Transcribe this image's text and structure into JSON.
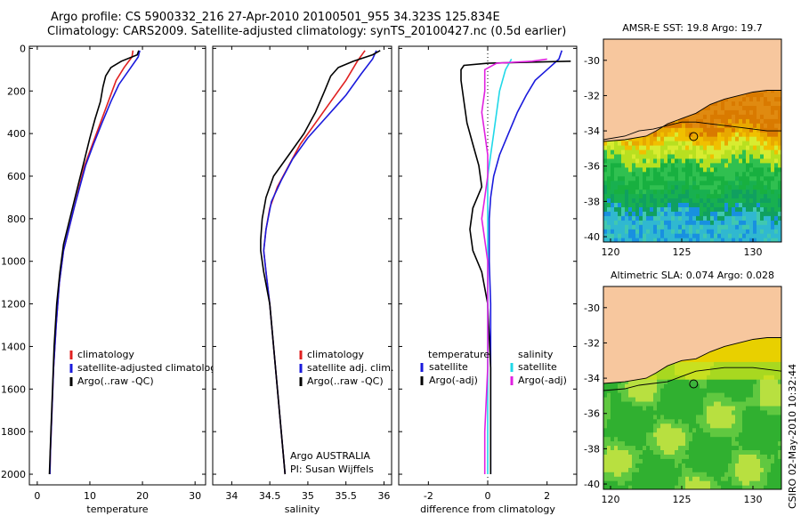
{
  "header": {
    "line1": "Argo profile: CS 5900332_216 27-Apr-2010 20100501_955 34.323S 125.834E",
    "line2": "Climatology: CARS2009. Satellite-adjusted climatology: synTS_20100427.nc (0.5d earlier)"
  },
  "footer_stamp": "CSIRO 02-May-2010 10:32:44",
  "colors": {
    "climatology": "#e02020",
    "satellite": "#1a1adc",
    "argo": "#000000",
    "sal_satellite": "#20d8e8",
    "sal_argo": "#e020e0",
    "land": "#f7c79e"
  },
  "chart_data": [
    {
      "type": "line",
      "id": "temperature",
      "xlabel": "temperature",
      "ylabel": "",
      "xlim": [
        -1.5,
        32
      ],
      "ylim": [
        2050,
        -10
      ],
      "xticks": [
        0,
        10,
        20,
        30
      ],
      "yticks": [
        0,
        200,
        400,
        600,
        800,
        1000,
        1200,
        1400,
        1600,
        1800,
        2000
      ],
      "legend": [
        "climatology",
        "satellite-adjusted climatology",
        "Argo(..raw -QC)"
      ],
      "series": [
        {
          "name": "climatology",
          "color": "#e02020",
          "points": [
            [
              18.2,
              10
            ],
            [
              18.0,
              40
            ],
            [
              16.5,
              90
            ],
            [
              15.0,
              150
            ],
            [
              13.5,
              250
            ],
            [
              12.0,
              350
            ],
            [
              10.5,
              450
            ],
            [
              9.0,
              550
            ],
            [
              8.0,
              650
            ],
            [
              7.0,
              750
            ],
            [
              6.0,
              850
            ],
            [
              5.0,
              950
            ],
            [
              4.2,
              1100
            ],
            [
              3.6,
              1300
            ],
            [
              3.1,
              1500
            ],
            [
              2.8,
              1700
            ],
            [
              2.5,
              1900
            ],
            [
              2.4,
              2000
            ]
          ]
        },
        {
          "name": "satellite-adjusted climatology",
          "color": "#1a1adc",
          "points": [
            [
              19.5,
              10
            ],
            [
              19.2,
              40
            ],
            [
              17.5,
              100
            ],
            [
              15.5,
              170
            ],
            [
              14.0,
              250
            ],
            [
              12.3,
              350
            ],
            [
              10.7,
              450
            ],
            [
              9.2,
              550
            ],
            [
              8.1,
              650
            ],
            [
              7.0,
              750
            ],
            [
              6.0,
              850
            ],
            [
              5.0,
              950
            ],
            [
              4.2,
              1100
            ],
            [
              3.6,
              1300
            ],
            [
              3.1,
              1500
            ],
            [
              2.8,
              1700
            ],
            [
              2.5,
              1900
            ],
            [
              2.4,
              2000
            ]
          ]
        },
        {
          "name": "Argo(..raw -QC)",
          "color": "#000000",
          "points": [
            [
              19.3,
              10
            ],
            [
              19.0,
              30
            ],
            [
              16.0,
              60
            ],
            [
              14.0,
              90
            ],
            [
              13.0,
              130
            ],
            [
              12.5,
              180
            ],
            [
              12.0,
              250
            ],
            [
              11.0,
              330
            ],
            [
              10.0,
              420
            ],
            [
              9.0,
              520
            ],
            [
              8.0,
              620
            ],
            [
              7.0,
              720
            ],
            [
              6.0,
              820
            ],
            [
              5.0,
              920
            ],
            [
              4.3,
              1050
            ],
            [
              3.7,
              1200
            ],
            [
              3.2,
              1400
            ],
            [
              2.9,
              1600
            ],
            [
              2.6,
              1800
            ],
            [
              2.3,
              2000
            ]
          ]
        }
      ]
    },
    {
      "type": "line",
      "id": "salinity",
      "xlabel": "salinity",
      "xlim": [
        33.75,
        36.1
      ],
      "ylim": [
        2050,
        -10
      ],
      "xticks": [
        34,
        34.5,
        35,
        35.5,
        36
      ],
      "legend": [
        "climatology",
        "satellite adj. clim.",
        "Argo(..raw -QC)"
      ],
      "annotation": [
        "Argo AUSTRALIA",
        "PI: Susan Wijffels"
      ],
      "series": [
        {
          "name": "climatology",
          "color": "#e02020",
          "points": [
            [
              35.75,
              10
            ],
            [
              35.65,
              60
            ],
            [
              35.5,
              150
            ],
            [
              35.3,
              250
            ],
            [
              35.1,
              350
            ],
            [
              34.9,
              450
            ],
            [
              34.75,
              550
            ],
            [
              34.6,
              650
            ],
            [
              34.5,
              750
            ],
            [
              34.45,
              850
            ],
            [
              34.42,
              950
            ],
            [
              34.45,
              1050
            ],
            [
              34.5,
              1200
            ],
            [
              34.55,
              1400
            ],
            [
              34.6,
              1600
            ],
            [
              34.65,
              1800
            ],
            [
              34.7,
              2000
            ]
          ]
        },
        {
          "name": "satellite adj. clim.",
          "color": "#1a1adc",
          "points": [
            [
              35.9,
              10
            ],
            [
              35.85,
              50
            ],
            [
              35.7,
              120
            ],
            [
              35.5,
              220
            ],
            [
              35.25,
              320
            ],
            [
              35.0,
              420
            ],
            [
              34.8,
              520
            ],
            [
              34.65,
              620
            ],
            [
              34.52,
              720
            ],
            [
              34.45,
              850
            ],
            [
              34.42,
              950
            ],
            [
              34.45,
              1050
            ],
            [
              34.5,
              1200
            ],
            [
              34.55,
              1400
            ],
            [
              34.6,
              1600
            ],
            [
              34.65,
              1800
            ],
            [
              34.7,
              2000
            ]
          ]
        },
        {
          "name": "Argo(..raw -QC)",
          "color": "#000000",
          "points": [
            [
              35.95,
              10
            ],
            [
              35.85,
              30
            ],
            [
              35.6,
              60
            ],
            [
              35.4,
              90
            ],
            [
              35.3,
              130
            ],
            [
              35.22,
              200
            ],
            [
              35.1,
              300
            ],
            [
              34.95,
              400
            ],
            [
              34.75,
              500
            ],
            [
              34.55,
              600
            ],
            [
              34.45,
              700
            ],
            [
              34.4,
              800
            ],
            [
              34.38,
              900
            ],
            [
              34.38,
              950
            ],
            [
              34.42,
              1050
            ],
            [
              34.5,
              1200
            ],
            [
              34.55,
              1400
            ],
            [
              34.6,
              1600
            ],
            [
              34.65,
              1800
            ],
            [
              34.7,
              2000
            ]
          ]
        }
      ]
    },
    {
      "type": "line",
      "id": "difference",
      "xlabel": "difference from climatology",
      "xlim": [
        -3.0,
        3.0
      ],
      "ylim": [
        2050,
        -10
      ],
      "xticks": [
        -2,
        0,
        2
      ],
      "legend_temperature": [
        "temperature",
        "satellite",
        "Argo(-adj)"
      ],
      "legend_salinity": [
        "salinity",
        "satellite",
        "Argo(-adj)"
      ],
      "series": [
        {
          "name": "temperature satellite",
          "color": "#1a1adc",
          "points": [
            [
              2.5,
              10
            ],
            [
              2.4,
              50
            ],
            [
              2.0,
              100
            ],
            [
              1.6,
              150
            ],
            [
              1.3,
              220
            ],
            [
              1.0,
              300
            ],
            [
              0.7,
              400
            ],
            [
              0.4,
              500
            ],
            [
              0.2,
              600
            ],
            [
              0.1,
              700
            ],
            [
              0.05,
              800
            ],
            [
              0.05,
              1000
            ],
            [
              0.1,
              1200
            ],
            [
              0.1,
              1500
            ],
            [
              0.1,
              1800
            ],
            [
              0.1,
              2000
            ]
          ]
        },
        {
          "name": "temperature Argo(-adj)",
          "color": "#000000",
          "points": [
            [
              2.8,
              60
            ],
            [
              0.0,
              70
            ],
            [
              -0.8,
              80
            ],
            [
              -0.9,
              100
            ],
            [
              -0.9,
              150
            ],
            [
              -0.8,
              250
            ],
            [
              -0.7,
              350
            ],
            [
              -0.5,
              450
            ],
            [
              -0.3,
              550
            ],
            [
              -0.2,
              650
            ],
            [
              -0.5,
              750
            ],
            [
              -0.6,
              850
            ],
            [
              -0.5,
              950
            ],
            [
              -0.2,
              1050
            ],
            [
              0.0,
              1200
            ],
            [
              0.1,
              1500
            ],
            [
              0.1,
              1800
            ],
            [
              0.1,
              2000
            ]
          ]
        },
        {
          "name": "salinity satellite",
          "color": "#20d8e8",
          "points": [
            [
              0.8,
              50
            ],
            [
              0.6,
              100
            ],
            [
              0.4,
              200
            ],
            [
              0.3,
              300
            ],
            [
              0.2,
              400
            ],
            [
              0.1,
              500
            ],
            [
              0.0,
              600
            ],
            [
              0.0,
              800
            ],
            [
              0.0,
              1000
            ],
            [
              0.0,
              1200
            ],
            [
              0.0,
              1500
            ],
            [
              0.0,
              1800
            ],
            [
              0.0,
              2000
            ]
          ]
        },
        {
          "name": "salinity Argo(-adj)",
          "color": "#e020e0",
          "points": [
            [
              2.0,
              50
            ],
            [
              1.5,
              60
            ],
            [
              0.3,
              70
            ],
            [
              -0.1,
              100
            ],
            [
              -0.1,
              200
            ],
            [
              -0.2,
              300
            ],
            [
              -0.1,
              400
            ],
            [
              0.0,
              500
            ],
            [
              0.0,
              600
            ],
            [
              -0.1,
              700
            ],
            [
              -0.2,
              800
            ],
            [
              -0.1,
              900
            ],
            [
              0.0,
              1000
            ],
            [
              0.0,
              1200
            ],
            [
              0.0,
              1500
            ],
            [
              -0.1,
              1800
            ],
            [
              -0.1,
              2000
            ]
          ]
        }
      ]
    },
    {
      "type": "heatmap",
      "id": "sst_map",
      "title": "AMSR-E SST: 19.8 Argo: 19.7",
      "xlim": [
        119.5,
        132
      ],
      "ylim": [
        -40.3,
        -28.8
      ],
      "xticks": [
        120,
        125,
        130
      ],
      "yticks": [
        -30,
        -32,
        -34,
        -36,
        -38,
        -40
      ],
      "marker": {
        "lon": 125.834,
        "lat": -34.323
      },
      "coast": [
        [
          119.5,
          -34.6
        ],
        [
          121,
          -34.5
        ],
        [
          122.5,
          -34.3
        ],
        [
          123.2,
          -34.0
        ],
        [
          124,
          -33.6
        ],
        [
          125,
          -33.3
        ],
        [
          126,
          -33.0
        ],
        [
          127,
          -32.5
        ],
        [
          128,
          -32.2
        ],
        [
          129,
          -32.0
        ],
        [
          130,
          -31.8
        ],
        [
          131,
          -31.7
        ],
        [
          132,
          -31.7
        ]
      ],
      "contour": [
        [
          119.5,
          -34.5
        ],
        [
          121,
          -34.3
        ],
        [
          122,
          -34.0
        ],
        [
          123,
          -33.9
        ],
        [
          124,
          -33.7
        ],
        [
          125,
          -33.5
        ],
        [
          126,
          -33.5
        ],
        [
          127,
          -33.6
        ],
        [
          128,
          -33.7
        ],
        [
          129,
          -33.8
        ],
        [
          130,
          -33.9
        ],
        [
          131,
          -34.0
        ],
        [
          132,
          -34.0
        ]
      ]
    },
    {
      "type": "heatmap",
      "id": "sla_map",
      "title": "Altimetric SLA: 0.074 Argo: 0.028",
      "xlim": [
        119.5,
        132
      ],
      "ylim": [
        -40.3,
        -28.8
      ],
      "xticks": [
        120,
        125,
        130
      ],
      "yticks": [
        -30,
        -32,
        -34,
        -36,
        -38,
        -40
      ],
      "marker": {
        "lon": 125.834,
        "lat": -34.323
      },
      "coast": [
        [
          119.5,
          -34.3
        ],
        [
          121,
          -34.2
        ],
        [
          122.5,
          -34.0
        ],
        [
          123.2,
          -33.7
        ],
        [
          124,
          -33.3
        ],
        [
          125,
          -33.0
        ],
        [
          126,
          -32.9
        ],
        [
          127,
          -32.5
        ],
        [
          128,
          -32.2
        ],
        [
          129,
          -32.0
        ],
        [
          130,
          -31.8
        ],
        [
          131,
          -31.7
        ],
        [
          132,
          -31.7
        ]
      ],
      "contour": [
        [
          119.5,
          -34.7
        ],
        [
          121,
          -34.6
        ],
        [
          122,
          -34.4
        ],
        [
          123,
          -34.3
        ],
        [
          124,
          -34.2
        ],
        [
          125,
          -33.9
        ],
        [
          126,
          -33.6
        ],
        [
          127,
          -33.5
        ],
        [
          128,
          -33.4
        ],
        [
          129,
          -33.4
        ],
        [
          130,
          -33.4
        ],
        [
          131,
          -33.5
        ],
        [
          132,
          -33.6
        ]
      ]
    }
  ]
}
